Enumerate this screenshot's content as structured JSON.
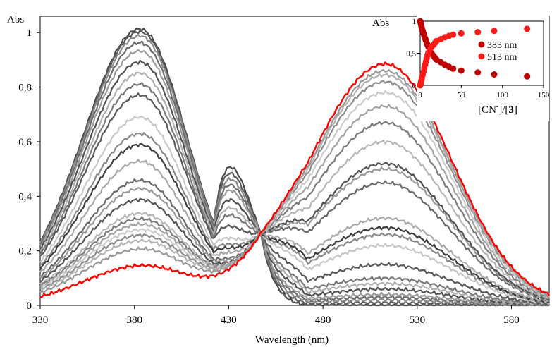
{
  "chart_data": [
    {
      "type": "line",
      "title": "",
      "xlabel": "Wavelength (nm)",
      "ylabel": "Abs",
      "xlim": [
        330,
        600
      ],
      "ylim": [
        0,
        1.06
      ],
      "xticks": [
        330,
        380,
        430,
        480,
        530,
        580
      ],
      "xtick_labels": [
        "330",
        "380",
        "430",
        "480",
        "530",
        "580"
      ],
      "yticks": [
        0,
        0.2,
        0.4,
        0.6,
        0.8,
        1
      ],
      "ytick_labels": [
        "0",
        "0,2",
        "0,4",
        "0,6",
        "0,8",
        "1"
      ],
      "grid": false,
      "legend": false,
      "isosbestic_point": [
        447,
        0.265
      ],
      "initial_spectrum": {
        "peak_383": 1.0,
        "peak_513": 0.0
      },
      "final_spectrum": {
        "peak_383": 0.14,
        "peak_513": 0.885,
        "color": "#ff0000"
      },
      "series_peaks": [
        {
          "peak_383": 1.0,
          "peak_513": 0.0
        },
        {
          "peak_383": 0.99,
          "peak_513": 0.01
        },
        {
          "peak_383": 0.975,
          "peak_513": 0.02
        },
        {
          "peak_383": 0.95,
          "peak_513": 0.03
        },
        {
          "peak_383": 0.92,
          "peak_513": 0.04
        },
        {
          "peak_383": 0.88,
          "peak_513": 0.06
        },
        {
          "peak_383": 0.84,
          "peak_513": 0.08
        },
        {
          "peak_383": 0.8,
          "peak_513": 0.1
        },
        {
          "peak_383": 0.76,
          "peak_513": 0.15
        },
        {
          "peak_383": 0.68,
          "peak_513": 0.22
        },
        {
          "peak_383": 0.62,
          "peak_513": 0.26
        },
        {
          "peak_383": 0.58,
          "peak_513": 0.285
        },
        {
          "peak_383": 0.52,
          "peak_513": 0.32
        },
        {
          "peak_383": 0.45,
          "peak_513": 0.45
        },
        {
          "peak_383": 0.42,
          "peak_513": 0.5
        },
        {
          "peak_383": 0.38,
          "peak_513": 0.52
        },
        {
          "peak_383": 0.33,
          "peak_513": 0.6
        },
        {
          "peak_383": 0.31,
          "peak_513": 0.67
        },
        {
          "peak_383": 0.29,
          "peak_513": 0.73
        },
        {
          "peak_383": 0.27,
          "peak_513": 0.78
        },
        {
          "peak_383": 0.25,
          "peak_513": 0.82
        },
        {
          "peak_383": 0.23,
          "peak_513": 0.845
        },
        {
          "peak_383": 0.2,
          "peak_513": 0.86
        },
        {
          "peak_383": 0.14,
          "peak_513": 0.885
        }
      ],
      "series_colors": [
        "#4a4a4a",
        "#5c5c5c",
        "#8c8c8c",
        "#6e6e6e",
        "#9c9c9c",
        "#525252",
        "#b0b0b0",
        "#7a7a7a",
        "#5a5a5a",
        "#c8c8c8",
        "#8a8a8a",
        "#3e3e3e",
        "#aaaaaa",
        "#6a6a6a",
        "#9a9a9a",
        "#545454",
        "#b8b8b8",
        "#7c7c7c",
        "#a4a4a4",
        "#cccccc",
        "#8e8e8e",
        "#b4b4b4",
        "#999999",
        "#ff0000"
      ]
    },
    {
      "type": "scatter",
      "title": "",
      "xlabel_parts": [
        "[CN",
        "-",
        "]/[",
        "3",
        "]"
      ],
      "ylabel": "Abs",
      "xlim": [
        0,
        150
      ],
      "ylim": [
        0,
        1
      ],
      "xticks": [
        0,
        50,
        100,
        150
      ],
      "xtick_labels": [
        "0",
        "50",
        "100",
        "150"
      ],
      "yticks": [
        0,
        0.5,
        1
      ],
      "ytick_labels": [
        "0",
        "0,5",
        "1"
      ],
      "legend": "top-right",
      "series": [
        {
          "name": "383 nm",
          "color": "#c00000",
          "x": [
            0,
            0.5,
            1,
            1.5,
            2,
            3,
            4,
            5,
            6,
            7,
            8,
            9,
            10,
            12,
            14,
            16,
            18,
            20,
            25,
            30,
            35,
            40,
            50,
            70,
            90,
            130
          ],
          "y": [
            1.0,
            0.98,
            0.95,
            0.92,
            0.89,
            0.85,
            0.81,
            0.77,
            0.73,
            0.7,
            0.66,
            0.63,
            0.6,
            0.55,
            0.5,
            0.46,
            0.43,
            0.4,
            0.36,
            0.32,
            0.29,
            0.26,
            0.23,
            0.2,
            0.17,
            0.14
          ]
        },
        {
          "name": "513 nm",
          "color": "#ff1a1a",
          "x": [
            0,
            0.5,
            1,
            1.5,
            2,
            3,
            4,
            5,
            6,
            7,
            8,
            9,
            10,
            12,
            14,
            16,
            18,
            20,
            25,
            30,
            35,
            40,
            50,
            70,
            90,
            130
          ],
          "y": [
            0.0,
            0.02,
            0.05,
            0.08,
            0.11,
            0.16,
            0.21,
            0.27,
            0.32,
            0.37,
            0.42,
            0.47,
            0.51,
            0.56,
            0.6,
            0.63,
            0.66,
            0.69,
            0.72,
            0.75,
            0.77,
            0.79,
            0.81,
            0.83,
            0.85,
            0.88
          ]
        }
      ]
    }
  ]
}
